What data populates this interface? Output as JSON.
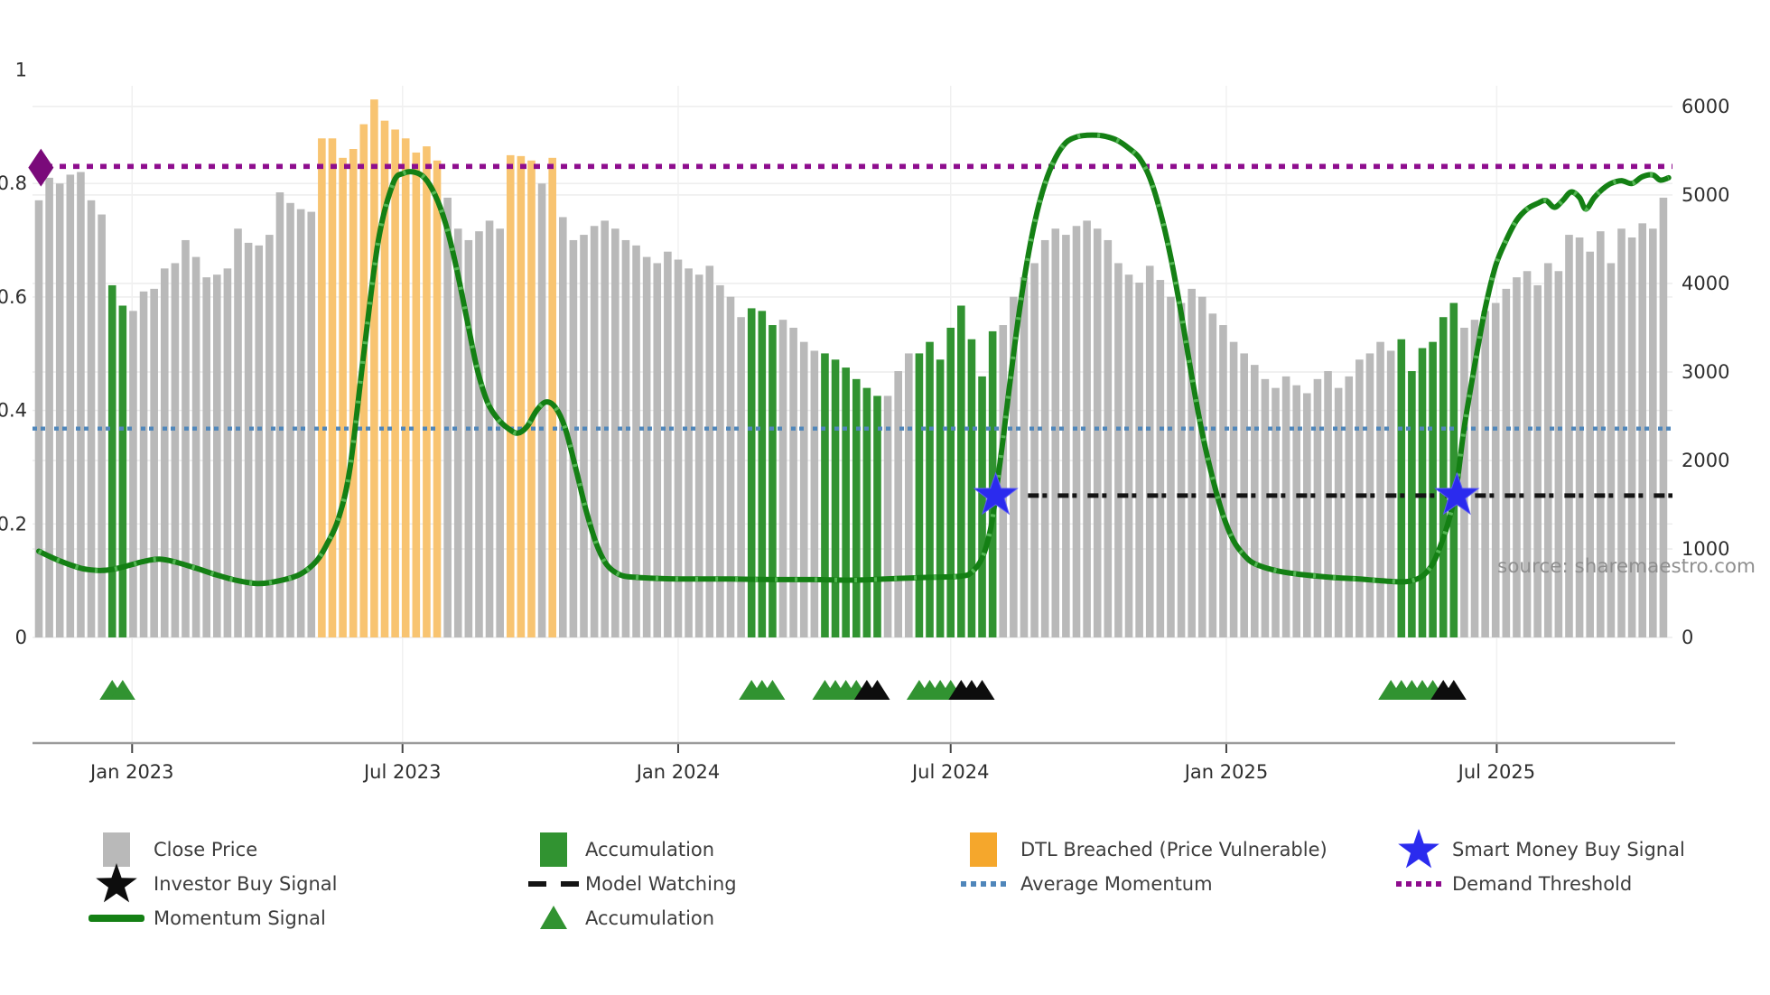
{
  "source_text": "source: sharemaestro.com",
  "colors": {
    "close_bar": "#b9b9b9",
    "accumulation": "#319331",
    "dtl_bar": "#f8c471",
    "dtl_legend": "#f5a72c",
    "momentum": "#148014",
    "momentum_tick": "#5bbd5b",
    "avg_momentum": "#4f86ba",
    "demand_threshold": "#8e0d8e",
    "demand_marker": "#7a0a7a",
    "model_watching": "#141414",
    "buy_star": "#2b2bee",
    "investor_black": "#0d0d0d",
    "axis_text": "#2e2e2e",
    "muted_text": "#8f8f8f",
    "grid": "#ececec",
    "axis_line": "#9a9a9a"
  },
  "chart_data": {
    "type": "bar+line",
    "title": "",
    "x_unit": "weekly",
    "x_ticks": [
      {
        "label": "Jan 2023",
        "week": 8.9
      },
      {
        "label": "Jul 2023",
        "week": 34.7
      },
      {
        "label": "Jan 2024",
        "week": 61.0
      },
      {
        "label": "Jul 2024",
        "week": 87.0
      },
      {
        "label": "Jan 2025",
        "week": 113.3
      },
      {
        "label": "Jul 2025",
        "week": 139.1
      }
    ],
    "left_axis": {
      "range": [
        0,
        1.07
      ],
      "ticks": [
        1,
        0.8,
        0.6,
        0.4,
        0.2,
        0
      ],
      "labels": [
        "1",
        "0.8",
        "0.6",
        "0.4",
        "0.2",
        "0"
      ]
    },
    "right_axis": {
      "range": [
        0,
        6420
      ],
      "ticks": [
        6000,
        5000,
        4000,
        3000,
        2000,
        1000,
        0
      ],
      "labels": [
        "6000",
        "5000",
        "4000",
        "3000",
        "2000",
        "1000",
        "0"
      ]
    },
    "close_price": {
      "axis": "right",
      "values": [
        4940,
        5195,
        5130,
        5230,
        5260,
        4940,
        4780,
        3980,
        3750,
        3690,
        3910,
        3940,
        4170,
        4230,
        4490,
        4300,
        4070,
        4100,
        4170,
        4620,
        4460,
        4430,
        4550,
        5030,
        4910,
        4840,
        4810,
        5640,
        5640,
        5420,
        5520,
        5800,
        6080,
        5840,
        5740,
        5640,
        5480,
        5550,
        5390,
        4970,
        4620,
        4490,
        4590,
        4710,
        4620,
        5450,
        5440,
        5390,
        5130,
        5420,
        4750,
        4490,
        4550,
        4650,
        4710,
        4620,
        4490,
        4430,
        4300,
        4230,
        4360,
        4270,
        4170,
        4100,
        4200,
        3980,
        3850,
        3620,
        3720,
        3690,
        3530,
        3590,
        3500,
        3340,
        3240,
        3210,
        3140,
        3050,
        2920,
        2820,
        2730,
        2730,
        3010,
        3210,
        3210,
        3340,
        3140,
        3500,
        3750,
        3370,
        2950,
        3460,
        3530,
        3850,
        4070,
        4230,
        4490,
        4620,
        4550,
        4650,
        4710,
        4620,
        4490,
        4230,
        4100,
        4010,
        4200,
        4040,
        3850,
        3780,
        3940,
        3850,
        3660,
        3530,
        3340,
        3210,
        3080,
        2920,
        2820,
        2950,
        2850,
        2760,
        2920,
        3010,
        2820,
        2950,
        3140,
        3210,
        3340,
        3240,
        3370,
        3010,
        3270,
        3340,
        3620,
        3780,
        3500,
        3590,
        3690,
        3780,
        3940,
        4070,
        4140,
        3980,
        4230,
        4140,
        4550,
        4520,
        4360,
        4590,
        4230,
        4620,
        4520,
        4680,
        4620,
        4970
      ]
    },
    "bar_segments": {
      "accumulation": [
        [
          7,
          8
        ],
        [
          68,
          70
        ],
        [
          75,
          80
        ],
        [
          84,
          91
        ],
        [
          130,
          135
        ]
      ],
      "dtl_breached": [
        [
          27,
          38
        ],
        [
          45,
          47
        ],
        [
          49,
          49
        ]
      ]
    },
    "momentum_signal": {
      "axis": "left",
      "points": [
        [
          0,
          0.152
        ],
        [
          1,
          0.143
        ],
        [
          2,
          0.135
        ],
        [
          3,
          0.128
        ],
        [
          4,
          0.122
        ],
        [
          5,
          0.119
        ],
        [
          6,
          0.118
        ],
        [
          7,
          0.12
        ],
        [
          8,
          0.124
        ],
        [
          9,
          0.129
        ],
        [
          10,
          0.134
        ],
        [
          11.5,
          0.138
        ],
        [
          13,
          0.133
        ],
        [
          15,
          0.122
        ],
        [
          17,
          0.11
        ],
        [
          19,
          0.1
        ],
        [
          21,
          0.095
        ],
        [
          23,
          0.1
        ],
        [
          25,
          0.112
        ],
        [
          26.5,
          0.135
        ],
        [
          27.5,
          0.165
        ],
        [
          28.6,
          0.21
        ],
        [
          29.7,
          0.3
        ],
        [
          31,
          0.5
        ],
        [
          32.4,
          0.7
        ],
        [
          33.8,
          0.8
        ],
        [
          34.8,
          0.818
        ],
        [
          35.8,
          0.82
        ],
        [
          36.8,
          0.81
        ],
        [
          37.8,
          0.78
        ],
        [
          38.8,
          0.73
        ],
        [
          39.8,
          0.655
        ],
        [
          40.8,
          0.565
        ],
        [
          41.8,
          0.475
        ],
        [
          42.8,
          0.415
        ],
        [
          43.8,
          0.385
        ],
        [
          44.8,
          0.368
        ],
        [
          45.7,
          0.36
        ],
        [
          46.6,
          0.372
        ],
        [
          47.5,
          0.4
        ],
        [
          48.4,
          0.415
        ],
        [
          49.3,
          0.405
        ],
        [
          50.2,
          0.37
        ],
        [
          51.2,
          0.3
        ],
        [
          52.2,
          0.225
        ],
        [
          53.2,
          0.165
        ],
        [
          54.2,
          0.128
        ],
        [
          55.5,
          0.11
        ],
        [
          57,
          0.106
        ],
        [
          59,
          0.104
        ],
        [
          62,
          0.103
        ],
        [
          66,
          0.103
        ],
        [
          70,
          0.102
        ],
        [
          74,
          0.102
        ],
        [
          78,
          0.101
        ],
        [
          82,
          0.104
        ],
        [
          85,
          0.106
        ],
        [
          88,
          0.108
        ],
        [
          89,
          0.115
        ],
        [
          90,
          0.14
        ],
        [
          90.8,
          0.19
        ],
        [
          91.3,
          0.25
        ],
        [
          92,
          0.35
        ],
        [
          93,
          0.5
        ],
        [
          94,
          0.63
        ],
        [
          95,
          0.73
        ],
        [
          96,
          0.8
        ],
        [
          97,
          0.845
        ],
        [
          98,
          0.872
        ],
        [
          99,
          0.882
        ],
        [
          100,
          0.885
        ],
        [
          101,
          0.885
        ],
        [
          102,
          0.882
        ],
        [
          103,
          0.875
        ],
        [
          104,
          0.862
        ],
        [
          105,
          0.845
        ],
        [
          106,
          0.81
        ],
        [
          107,
          0.75
        ],
        [
          108,
          0.67
        ],
        [
          109,
          0.57
        ],
        [
          110,
          0.46
        ],
        [
          111,
          0.36
        ],
        [
          112,
          0.28
        ],
        [
          113,
          0.215
        ],
        [
          114,
          0.17
        ],
        [
          115,
          0.145
        ],
        [
          116,
          0.13
        ],
        [
          118,
          0.118
        ],
        [
          120,
          0.112
        ],
        [
          122,
          0.108
        ],
        [
          124,
          0.105
        ],
        [
          126,
          0.103
        ],
        [
          128,
          0.1
        ],
        [
          130,
          0.098
        ],
        [
          131,
          0.1
        ],
        [
          132,
          0.108
        ],
        [
          133,
          0.13
        ],
        [
          134,
          0.175
        ],
        [
          134.8,
          0.225
        ],
        [
          135.3,
          0.27
        ],
        [
          136,
          0.37
        ],
        [
          137,
          0.48
        ],
        [
          138,
          0.58
        ],
        [
          139,
          0.655
        ],
        [
          140,
          0.7
        ],
        [
          141,
          0.735
        ],
        [
          142,
          0.755
        ],
        [
          143,
          0.765
        ],
        [
          143.8,
          0.77
        ],
        [
          144.6,
          0.758
        ],
        [
          145.4,
          0.77
        ],
        [
          146.2,
          0.785
        ],
        [
          147,
          0.775
        ],
        [
          147.6,
          0.755
        ],
        [
          148.4,
          0.775
        ],
        [
          149.2,
          0.79
        ],
        [
          150,
          0.8
        ],
        [
          151,
          0.805
        ],
        [
          152,
          0.8
        ],
        [
          153,
          0.812
        ],
        [
          154,
          0.815
        ],
        [
          154.7,
          0.806
        ],
        [
          155.5,
          0.81
        ]
      ]
    },
    "hlines": {
      "demand_threshold": {
        "value": 0.83,
        "full_width": true
      },
      "average_momentum": {
        "value": 0.368,
        "full_width": true
      },
      "model_watching": {
        "value": 0.25,
        "from_week": 93,
        "to_week": 156
      }
    },
    "markers": {
      "demand_threshold_marker": {
        "week": 0.2,
        "value": 0.828
      },
      "smart_money_buy_signals": [
        {
          "week": 91.3,
          "value": 0.25
        },
        {
          "week": 135.3,
          "value": 0.25
        }
      ],
      "accumulation_triangle_weeks": [
        7,
        8,
        68,
        69,
        70,
        75,
        76,
        77,
        78,
        84,
        85,
        86,
        87,
        129,
        130,
        131,
        132,
        133
      ],
      "investor_buy_triangle_weeks": [
        79,
        80,
        88,
        89,
        90,
        134,
        135
      ]
    }
  },
  "legend": {
    "items": [
      {
        "label": "Close Price",
        "symbol": "square",
        "colorKey": "close_bar",
        "col": 0,
        "row": 0
      },
      {
        "label": "Investor Buy Signal",
        "symbol": "star",
        "colorKey": "investor_black",
        "col": 0,
        "row": 1
      },
      {
        "label": "Momentum Signal",
        "symbol": "line",
        "colorKey": "momentum",
        "col": 0,
        "row": 2
      },
      {
        "label": "Accumulation",
        "symbol": "square",
        "colorKey": "accumulation",
        "col": 1,
        "row": 0
      },
      {
        "label": "Model Watching",
        "symbol": "dashes",
        "colorKey": "model_watching",
        "col": 1,
        "row": 1
      },
      {
        "label": "Accumulation",
        "symbol": "triangle",
        "colorKey": "accumulation",
        "col": 1,
        "row": 2
      },
      {
        "label": "DTL Breached (Price Vulnerable)",
        "symbol": "square",
        "colorKey": "dtl_legend",
        "col": 2,
        "row": 0
      },
      {
        "label": "Average Momentum",
        "symbol": "dots",
        "colorKey": "avg_momentum",
        "col": 2,
        "row": 1
      },
      {
        "label": "Smart Money Buy Signal",
        "symbol": "star",
        "colorKey": "buy_star",
        "col": 3,
        "row": 0
      },
      {
        "label": "Demand Threshold",
        "symbol": "dots",
        "colorKey": "demand_threshold",
        "col": 3,
        "row": 1
      }
    ]
  }
}
